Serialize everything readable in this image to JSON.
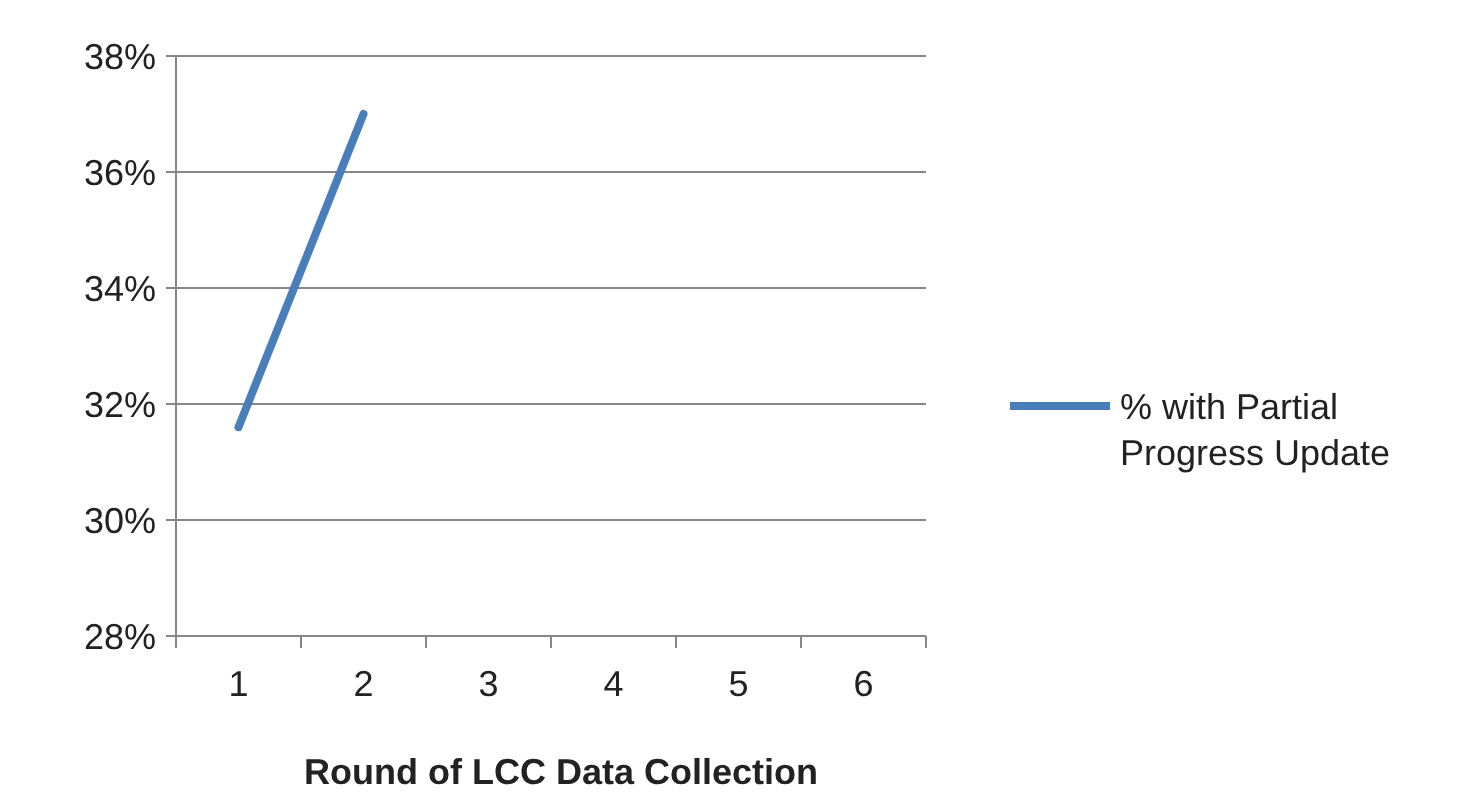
{
  "chart_data": {
    "type": "line",
    "xlabel": "Round of LCC Data Collection",
    "categories": [
      "1",
      "2",
      "3",
      "4",
      "5",
      "6"
    ],
    "series": [
      {
        "name": "% with Partial Progress Update",
        "color": "#4a7ebb",
        "values": [
          31.6,
          37.0,
          null,
          null,
          null,
          null
        ]
      }
    ],
    "ylim": [
      28,
      38
    ],
    "yticks": [
      {
        "value": 28,
        "label": "28%"
      },
      {
        "value": 30,
        "label": "30%"
      },
      {
        "value": 32,
        "label": "32%"
      },
      {
        "value": 34,
        "label": "34%"
      },
      {
        "value": 36,
        "label": "36%"
      },
      {
        "value": 38,
        "label": "38%"
      }
    ],
    "grid": "y",
    "legend": "right",
    "marker": "none",
    "line_style": "solid"
  }
}
